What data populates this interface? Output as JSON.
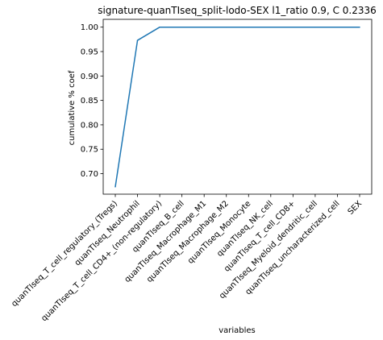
{
  "chart_data": {
    "type": "line",
    "title": "signature-quanTIseq_split-lodo-SEX l1_ratio 0.9, C 0.2336",
    "xlabel": "variables",
    "ylabel": "cumulative % coef",
    "categories": [
      "quanTIseq_T_cell_regulatory_(Tregs)",
      "quanTIseq_Neutrophil",
      "quanTIseq_T_cell_CD4+_(non-regulatory)",
      "quanTIseq_B_cell",
      "quanTIseq_Macrophage_M1",
      "quanTIseq_Macrophage_M2",
      "quanTIseq_Monocyte",
      "quanTIseq_NK_cell",
      "quanTIseq_T_cell_CD8+",
      "quanTIseq_Myeloid_dendritic_cell",
      "quanTIseq_uncharacterized_cell",
      "SEX"
    ],
    "series": [
      {
        "values": [
          0.673,
          0.973,
          1.0,
          1.0,
          1.0,
          1.0,
          1.0,
          1.0,
          1.0,
          1.0,
          1.0,
          1.0
        ],
        "color": "#1f77b4"
      }
    ],
    "ylim": [
      0.658,
      1.016
    ],
    "yticks": [
      "0.70",
      "0.75",
      "0.80",
      "0.85",
      "0.90",
      "0.95",
      "1.00"
    ],
    "grid": false,
    "legend": "none"
  }
}
